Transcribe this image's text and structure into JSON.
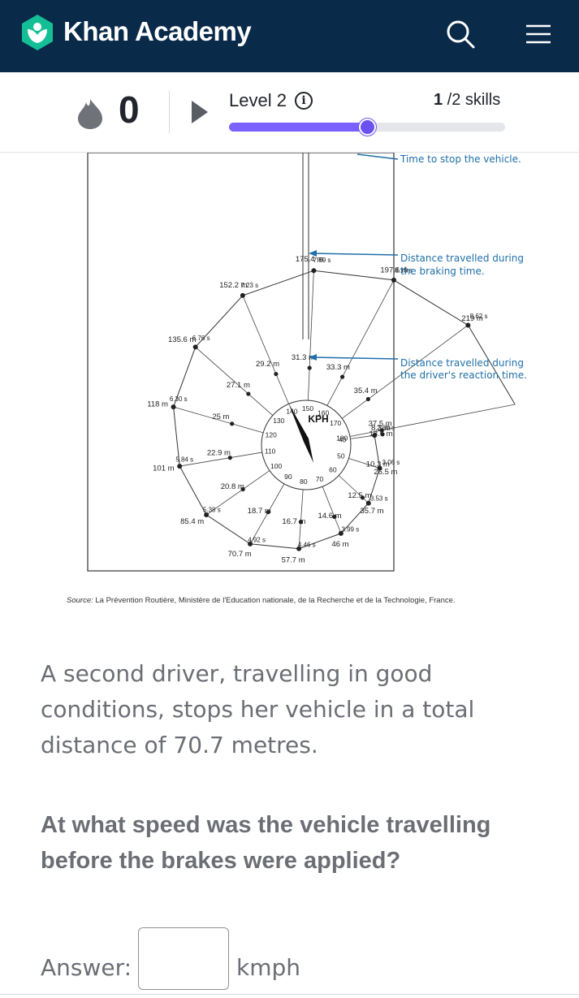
{
  "header": {
    "brand": "Khan Academy",
    "logo_icon": "khan-academy-hexagon-icon",
    "search_icon": "search-icon",
    "menu_icon": "hamburger-menu-icon",
    "bg_color": "#0a2a4a"
  },
  "status": {
    "streak_count": "0",
    "level_label": "Level 2",
    "skills_done": "1",
    "skills_total": " /2 skills",
    "progress_fraction": 0.5,
    "accent": "#7b61ff"
  },
  "figure": {
    "annotations": {
      "stop_time": "Time to stop the vehicle.",
      "braking_1": "Distance travelled during",
      "braking_2": "the braking time.",
      "reaction_1": "Distance travelled during",
      "reaction_2": "the driver's reaction time."
    },
    "center_label": "KPH",
    "speeds": [
      {
        "kph": "40",
        "reaction": "8.3 m",
        "total": "18.6 m",
        "time": "2.60 s"
      },
      {
        "kph": "50",
        "reaction": "10.3 m",
        "total": "26.5 m",
        "time": "3.06 s"
      },
      {
        "kph": "60",
        "reaction": "12.5 m",
        "total": "35.7 m",
        "time": "3.53 s"
      },
      {
        "kph": "70",
        "reaction": "14.6 m",
        "total": "46 m",
        "time": "3.99 s"
      },
      {
        "kph": "80",
        "reaction": "16.7 m",
        "total": "57.7 m",
        "time": "4.46 s"
      },
      {
        "kph": "90",
        "reaction": "18.7 m",
        "total": "70.7 m",
        "time": "4.92 s"
      },
      {
        "kph": "100",
        "reaction": "20.8 m",
        "total": "85.4 m",
        "time": "5.38 s"
      },
      {
        "kph": "110",
        "reaction": "22.9 m",
        "total": "101 m",
        "time": "5.84 s"
      },
      {
        "kph": "120",
        "reaction": "25 m",
        "total": "118 m",
        "time": "6.30 s"
      },
      {
        "kph": "130",
        "reaction": "27.1 m",
        "total": "135.6 m",
        "time": "6.76 s"
      },
      {
        "kph": "140",
        "reaction": "29.2 m",
        "total": "152.2 m",
        "time": "7.23 s"
      },
      {
        "kph": "150",
        "reaction": "31.3 m",
        "total": "175.4 m",
        "time": "7.69 s"
      },
      {
        "kph": "160",
        "reaction": "33.3 m",
        "total": "197.6 m",
        "time": "8.15 s"
      },
      {
        "kph": "170",
        "reaction": "35.4 m",
        "total": "219 m",
        "time": "8.62 s"
      },
      {
        "kph": "180",
        "reaction": "37.5 m",
        "total": "",
        "time": ""
      }
    ],
    "source_prefix": "Source:",
    "source_text": " La Prévention Routière, Ministère de l'Education nationale, de la Recherche et de la Technologie, France."
  },
  "question": {
    "text": "A second driver, travelling in good conditions, stops her vehicle in a total distance of 70.7 metres.",
    "prompt": "At what speed was the vehicle travelling before the brakes were applied?",
    "answer_label": "Answer:",
    "answer_value": "",
    "unit": "kmph"
  }
}
